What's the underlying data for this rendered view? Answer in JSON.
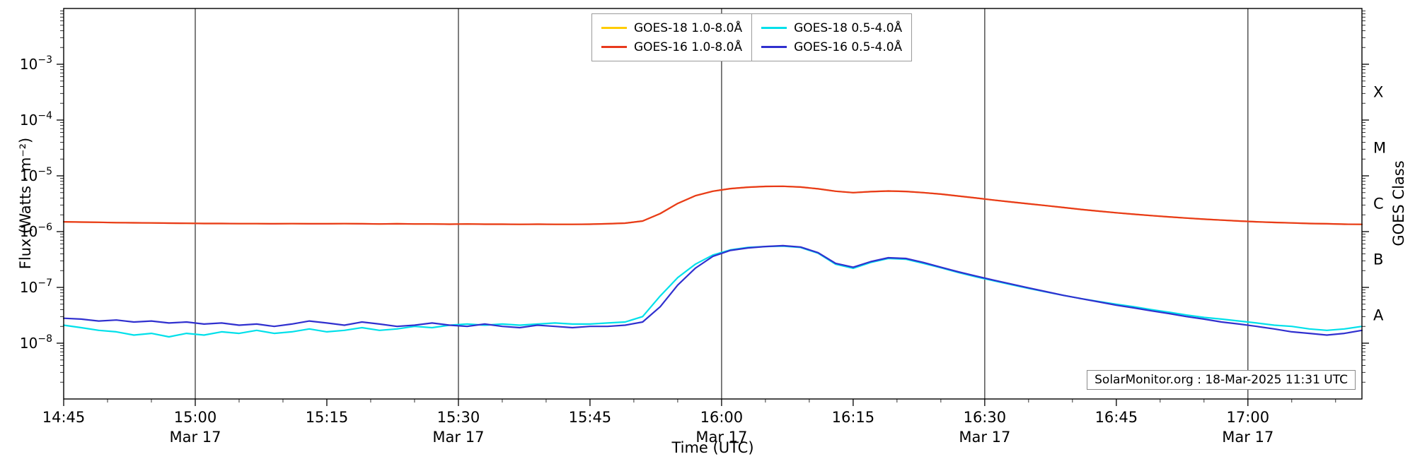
{
  "chart_data": {
    "type": "line",
    "xlabel": "Time (UTC)",
    "ylabel": "Flux (Watts · m⁻²)",
    "ylabel_right": "GOES Class",
    "annotation": "SolarMonitor.org : 18-Mar-2025 11:31 UTC",
    "y_scale": "log",
    "ylim": [
      1e-09,
      0.01
    ],
    "x_range_minutes": [
      0,
      148
    ],
    "x_unit": "minutes since 14:45 UTC (17-Mar-2025)",
    "grid": "vertical lines every 30 min, no horizontal gridlines",
    "legend_position": "top-center",
    "legend_columns": [
      [
        0,
        1
      ],
      [
        2,
        3
      ]
    ],
    "x_ticks": [
      {
        "t": 0,
        "label": "14:45"
      },
      {
        "t": 15,
        "label": "15:00"
      },
      {
        "t": 30,
        "label": "15:15"
      },
      {
        "t": 45,
        "label": "15:30"
      },
      {
        "t": 60,
        "label": "15:45"
      },
      {
        "t": 75,
        "label": "16:00"
      },
      {
        "t": 90,
        "label": "16:15"
      },
      {
        "t": 105,
        "label": "16:30"
      },
      {
        "t": 120,
        "label": "16:45"
      },
      {
        "t": 135,
        "label": "17:00"
      }
    ],
    "x_date_ticks": [
      {
        "t": 15,
        "label": "Mar 17"
      },
      {
        "t": 45,
        "label": "Mar 17"
      },
      {
        "t": 75,
        "label": "Mar 17"
      },
      {
        "t": 105,
        "label": "Mar 17"
      },
      {
        "t": 135,
        "label": "Mar 17"
      }
    ],
    "x_gridlines_t": [
      15,
      45,
      75,
      105,
      135
    ],
    "y_ticks": [
      {
        "exp": -3,
        "base": "10",
        "sup": "−3"
      },
      {
        "exp": -4,
        "base": "10",
        "sup": "−4"
      },
      {
        "exp": -5,
        "base": "10",
        "sup": "−5"
      },
      {
        "exp": -6,
        "base": "10",
        "sup": "−6"
      },
      {
        "exp": -7,
        "base": "10",
        "sup": "−7"
      },
      {
        "exp": -8,
        "base": "10",
        "sup": "−8"
      }
    ],
    "goes_class": [
      {
        "label": "X",
        "log10": -3.5
      },
      {
        "label": "M",
        "log10": -4.5
      },
      {
        "label": "C",
        "log10": -5.5
      },
      {
        "label": "B",
        "log10": -6.5
      },
      {
        "label": "A",
        "log10": -7.5
      }
    ],
    "x_minutes": [
      0,
      2,
      4,
      6,
      8,
      10,
      12,
      14,
      16,
      18,
      20,
      22,
      24,
      26,
      28,
      30,
      32,
      34,
      36,
      38,
      40,
      42,
      44,
      46,
      48,
      50,
      52,
      54,
      56,
      58,
      60,
      62,
      64,
      66,
      68,
      70,
      72,
      74,
      76,
      78,
      80,
      82,
      84,
      86,
      88,
      90,
      92,
      94,
      96,
      98,
      100,
      102,
      104,
      106,
      108,
      110,
      112,
      114,
      116,
      118,
      120,
      122,
      124,
      126,
      128,
      130,
      132,
      134,
      136,
      138,
      140,
      142,
      144,
      146,
      148
    ],
    "series": [
      {
        "name": "GOES-18 1.0-8.0Å",
        "color": "#ffcc00",
        "values": [
          1.5e-06,
          1.48e-06,
          1.47e-06,
          1.45e-06,
          1.44e-06,
          1.43e-06,
          1.42e-06,
          1.41e-06,
          1.4e-06,
          1.4e-06,
          1.39e-06,
          1.39e-06,
          1.38e-06,
          1.39e-06,
          1.38e-06,
          1.38e-06,
          1.39e-06,
          1.38e-06,
          1.37e-06,
          1.38e-06,
          1.37e-06,
          1.37e-06,
          1.36e-06,
          1.37e-06,
          1.36e-06,
          1.36e-06,
          1.35e-06,
          1.36e-06,
          1.35e-06,
          1.35e-06,
          1.36e-06,
          1.38e-06,
          1.42e-06,
          1.55e-06,
          2.1e-06,
          3.2e-06,
          4.4e-06,
          5.3e-06,
          5.9e-06,
          6.25e-06,
          6.45e-06,
          6.5e-06,
          6.3e-06,
          5.85e-06,
          5.3e-06,
          5e-06,
          5.2e-06,
          5.35e-06,
          5.25e-06,
          5e-06,
          4.7e-06,
          4.35e-06,
          4e-06,
          3.68e-06,
          3.4e-06,
          3.15e-06,
          2.92e-06,
          2.7e-06,
          2.5e-06,
          2.33e-06,
          2.18e-06,
          2.05e-06,
          1.94e-06,
          1.84e-06,
          1.75e-06,
          1.67e-06,
          1.61e-06,
          1.55e-06,
          1.5e-06,
          1.46e-06,
          1.43e-06,
          1.4e-06,
          1.38e-06,
          1.36e-06,
          1.35e-06
        ]
      },
      {
        "name": "GOES-16 1.0-8.0Å",
        "color": "#e8391d",
        "values": [
          1.5e-06,
          1.48e-06,
          1.47e-06,
          1.45e-06,
          1.44e-06,
          1.43e-06,
          1.42e-06,
          1.41e-06,
          1.4e-06,
          1.4e-06,
          1.39e-06,
          1.39e-06,
          1.38e-06,
          1.39e-06,
          1.38e-06,
          1.38e-06,
          1.39e-06,
          1.38e-06,
          1.37e-06,
          1.38e-06,
          1.37e-06,
          1.37e-06,
          1.36e-06,
          1.37e-06,
          1.36e-06,
          1.36e-06,
          1.35e-06,
          1.36e-06,
          1.35e-06,
          1.35e-06,
          1.36e-06,
          1.38e-06,
          1.42e-06,
          1.55e-06,
          2.1e-06,
          3.2e-06,
          4.4e-06,
          5.3e-06,
          5.9e-06,
          6.25e-06,
          6.45e-06,
          6.5e-06,
          6.3e-06,
          5.85e-06,
          5.3e-06,
          5e-06,
          5.2e-06,
          5.35e-06,
          5.25e-06,
          5e-06,
          4.7e-06,
          4.35e-06,
          4e-06,
          3.68e-06,
          3.4e-06,
          3.15e-06,
          2.92e-06,
          2.7e-06,
          2.5e-06,
          2.33e-06,
          2.18e-06,
          2.05e-06,
          1.94e-06,
          1.84e-06,
          1.75e-06,
          1.67e-06,
          1.61e-06,
          1.55e-06,
          1.5e-06,
          1.46e-06,
          1.43e-06,
          1.4e-06,
          1.38e-06,
          1.36e-06,
          1.35e-06
        ]
      },
      {
        "name": "GOES-18 0.5-4.0Å",
        "color": "#00e0ea",
        "values": [
          2.1e-08,
          1.9e-08,
          1.7e-08,
          1.6e-08,
          1.4e-08,
          1.5e-08,
          1.3e-08,
          1.5e-08,
          1.4e-08,
          1.6e-08,
          1.5e-08,
          1.7e-08,
          1.5e-08,
          1.6e-08,
          1.8e-08,
          1.6e-08,
          1.7e-08,
          1.9e-08,
          1.7e-08,
          1.8e-08,
          2e-08,
          1.9e-08,
          2.1e-08,
          2.2e-08,
          2.1e-08,
          2.2e-08,
          2.1e-08,
          2.2e-08,
          2.3e-08,
          2.2e-08,
          2.2e-08,
          2.3e-08,
          2.4e-08,
          3e-08,
          7e-08,
          1.5e-07,
          2.6e-07,
          3.8e-07,
          4.7e-07,
          5.2e-07,
          5.4e-07,
          5.5e-07,
          5.2e-07,
          4.1e-07,
          2.6e-07,
          2.2e-07,
          2.8e-07,
          3.3e-07,
          3.2e-07,
          2.7e-07,
          2.25e-07,
          1.85e-07,
          1.55e-07,
          1.32e-07,
          1.12e-07,
          9.6e-08,
          8.3e-08,
          7.2e-08,
          6.3e-08,
          5.6e-08,
          5e-08,
          4.5e-08,
          4e-08,
          3.6e-08,
          3.2e-08,
          2.9e-08,
          2.7e-08,
          2.5e-08,
          2.3e-08,
          2.1e-08,
          2e-08,
          1.8e-08,
          1.7e-08,
          1.8e-08,
          2e-08
        ]
      },
      {
        "name": "GOES-16 0.5-4.0Å",
        "color": "#3030cf",
        "values": [
          2.8e-08,
          2.7e-08,
          2.5e-08,
          2.6e-08,
          2.4e-08,
          2.5e-08,
          2.3e-08,
          2.4e-08,
          2.2e-08,
          2.3e-08,
          2.1e-08,
          2.2e-08,
          2e-08,
          2.2e-08,
          2.5e-08,
          2.3e-08,
          2.1e-08,
          2.4e-08,
          2.2e-08,
          2e-08,
          2.1e-08,
          2.3e-08,
          2.1e-08,
          2e-08,
          2.2e-08,
          2e-08,
          1.9e-08,
          2.1e-08,
          2e-08,
          1.9e-08,
          2e-08,
          2e-08,
          2.1e-08,
          2.4e-08,
          4.5e-08,
          1.1e-07,
          2.2e-07,
          3.6e-07,
          4.6e-07,
          5.1e-07,
          5.4e-07,
          5.6e-07,
          5.3e-07,
          4.2e-07,
          2.7e-07,
          2.3e-07,
          2.9e-07,
          3.4e-07,
          3.3e-07,
          2.8e-07,
          2.3e-07,
          1.9e-07,
          1.6e-07,
          1.35e-07,
          1.15e-07,
          9.8e-08,
          8.4e-08,
          7.2e-08,
          6.3e-08,
          5.5e-08,
          4.8e-08,
          4.3e-08,
          3.8e-08,
          3.4e-08,
          3e-08,
          2.7e-08,
          2.4e-08,
          2.2e-08,
          2e-08,
          1.8e-08,
          1.6e-08,
          1.5e-08,
          1.4e-08,
          1.5e-08,
          1.7e-08
        ]
      }
    ]
  }
}
